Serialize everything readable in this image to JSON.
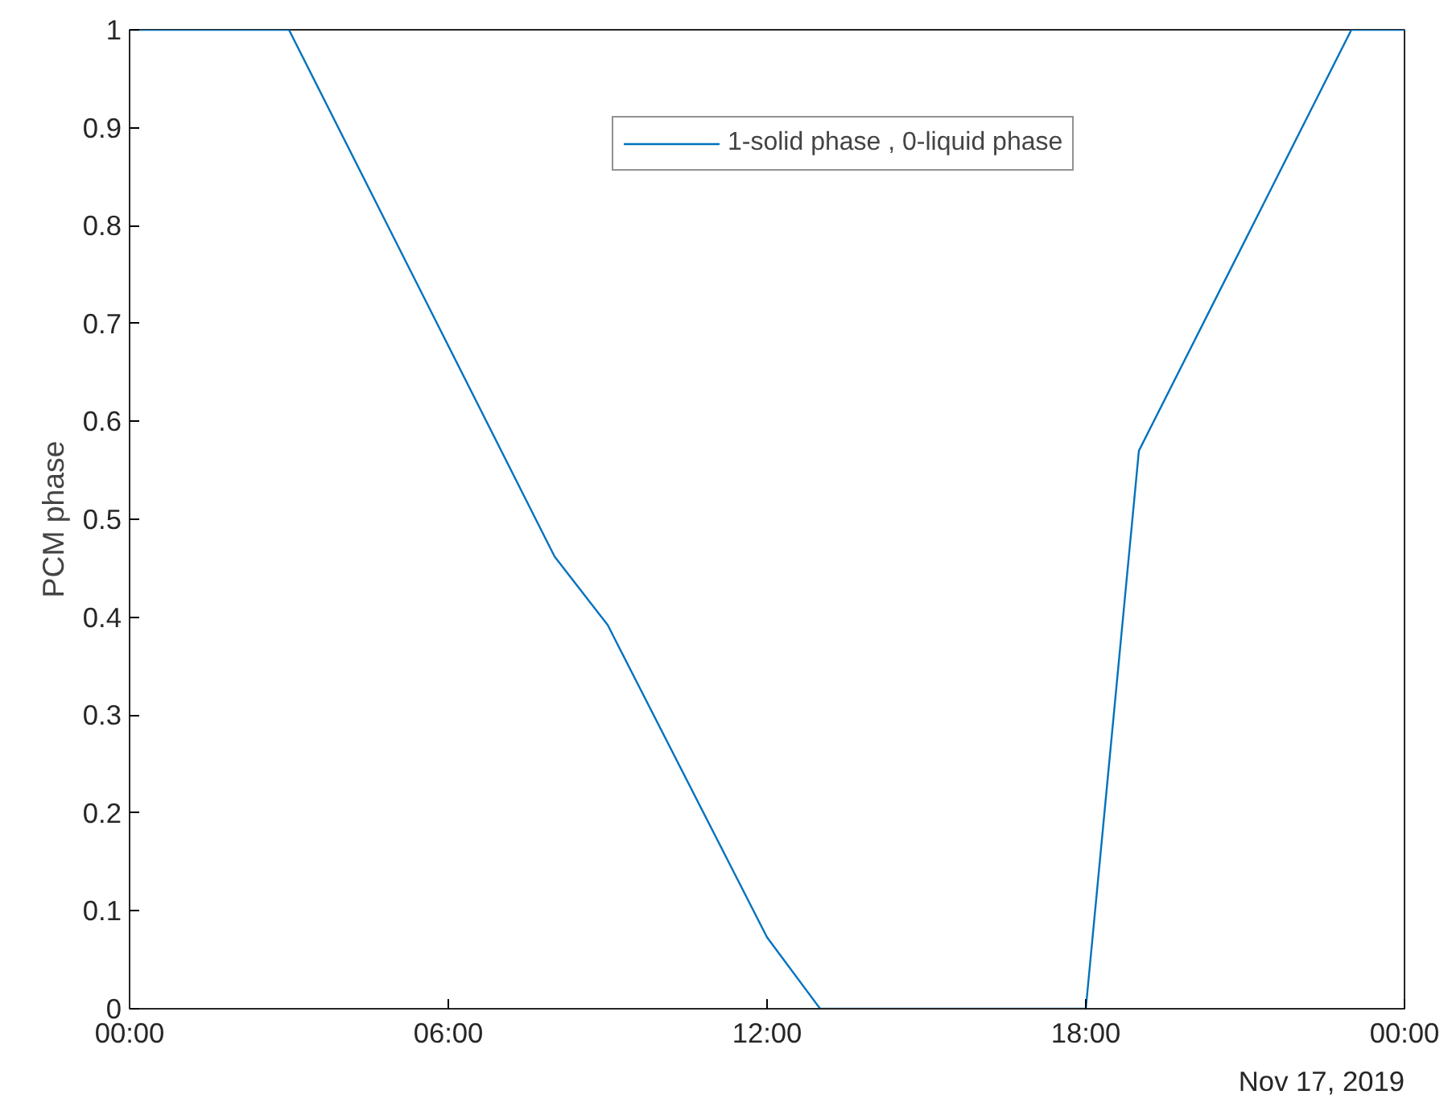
{
  "chart_data": {
    "type": "line",
    "ylabel": "PCM phase",
    "x": [
      0,
      3,
      8,
      9,
      12,
      13,
      18,
      19,
      23,
      24
    ],
    "series": [
      {
        "name": "1-solid phase , 0-liquid phase",
        "color": "#0072bd",
        "values": [
          1,
          1,
          0.462,
          0.392,
          0.073,
          0,
          0,
          0.57,
          1,
          1
        ]
      }
    ],
    "xlim": [
      0,
      24
    ],
    "xticks": [
      {
        "value": 0,
        "label": "00:00"
      },
      {
        "value": 6,
        "label": "06:00"
      },
      {
        "value": 12,
        "label": "12:00"
      },
      {
        "value": 18,
        "label": "18:00"
      },
      {
        "value": 24,
        "label": "00:00"
      }
    ],
    "ylim": [
      0,
      1
    ],
    "yticks": [
      0,
      0.1,
      0.2,
      0.3,
      0.4,
      0.5,
      0.6,
      0.7,
      0.8,
      0.9,
      1
    ],
    "annotations": [
      "Nov 17, 2019"
    ],
    "grid": false,
    "legend": "top",
    "line_style": "solid",
    "marker": "none"
  }
}
